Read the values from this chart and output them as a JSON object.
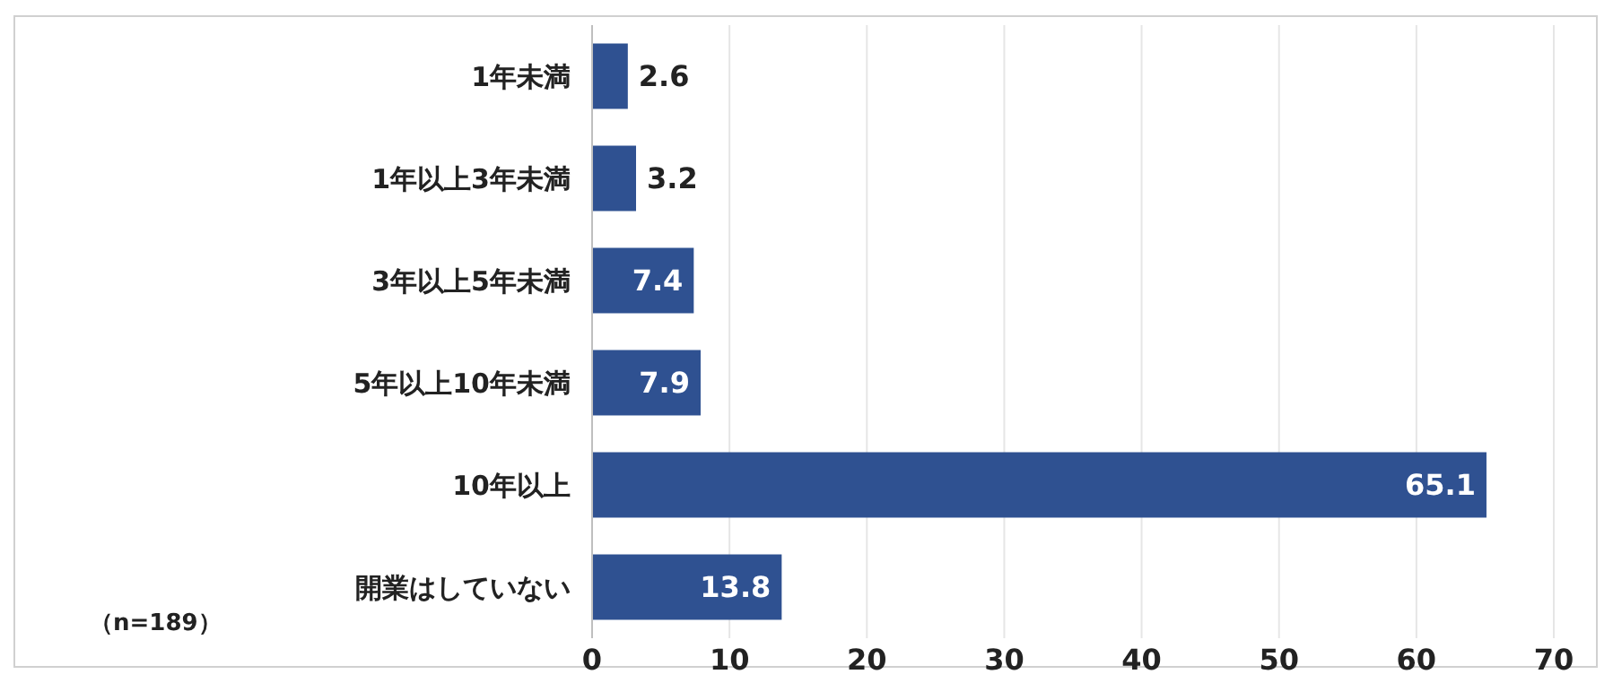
{
  "chart_data": {
    "type": "bar",
    "orientation": "horizontal",
    "categories": [
      "1年未満",
      "1年以上3年未満",
      "3年以上5年未満",
      "5年以上10年未満",
      "10年以上",
      "開業はしていない"
    ],
    "values": [
      2.6,
      3.2,
      7.4,
      7.9,
      65.1,
      13.8
    ],
    "color": "#2f5191",
    "xlim": [
      0,
      70
    ],
    "xticks": [
      0,
      10,
      20,
      30,
      40,
      50,
      60,
      70
    ],
    "grid": "x",
    "data_labels": true,
    "annotations": [
      "（n=189）"
    ]
  }
}
